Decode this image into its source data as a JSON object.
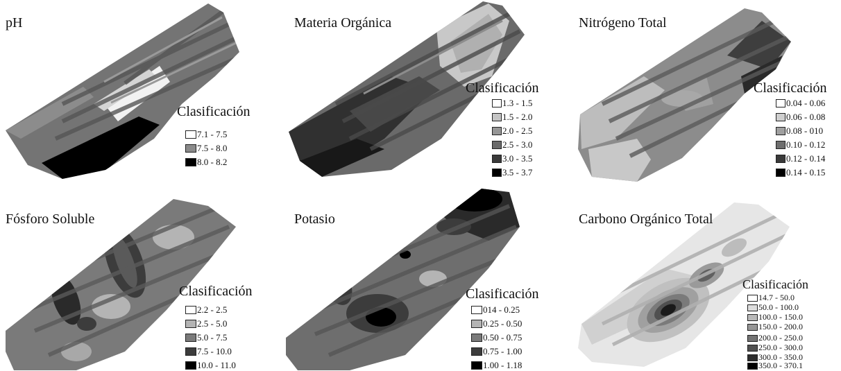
{
  "panels": [
    {
      "title": "pH",
      "legend_title": "Clasificación",
      "classes": [
        {
          "label": "7.1 - 7.5",
          "color": "#ffffff"
        },
        {
          "label": "7.5 - 8.0",
          "color": "#8a8a8a"
        },
        {
          "label": "8.0 - 8.2",
          "color": "#000000"
        }
      ]
    },
    {
      "title": "Materia Orgánica",
      "legend_title": "Clasificación",
      "classes": [
        {
          "label": "1.3 - 1.5",
          "color": "#ffffff"
        },
        {
          "label": "1.5 - 2.0",
          "color": "#c4c4c4"
        },
        {
          "label": "2.0 - 2.5",
          "color": "#969696"
        },
        {
          "label": "2.5 - 3.0",
          "color": "#6a6a6a"
        },
        {
          "label": "3.0 - 3.5",
          "color": "#3a3a3a"
        },
        {
          "label": "3.5 - 3.7",
          "color": "#000000"
        }
      ]
    },
    {
      "title": "Nitrógeno Total",
      "legend_title": "Clasificación",
      "classes": [
        {
          "label": "0.04 - 0.06",
          "color": "#ffffff"
        },
        {
          "label": "0.06 - 0.08",
          "color": "#cfcfcf"
        },
        {
          "label": "0.08 - 010",
          "color": "#a0a0a0"
        },
        {
          "label": "0.10 - 0.12",
          "color": "#6e6e6e"
        },
        {
          "label": "0.12 - 0.14",
          "color": "#3a3a3a"
        },
        {
          "label": "0.14 - 0.15",
          "color": "#000000"
        }
      ]
    },
    {
      "title": "Fósforo Soluble",
      "legend_title": "Clasificación",
      "classes": [
        {
          "label": "2.2 - 2.5",
          "color": "#ffffff"
        },
        {
          "label": "2.5 - 5.0",
          "color": "#b4b4b4"
        },
        {
          "label": "5.0 - 7.5",
          "color": "#7a7a7a"
        },
        {
          "label": "7.5 - 10.0",
          "color": "#3c3c3c"
        },
        {
          "label": "10.0 - 11.0",
          "color": "#000000"
        }
      ]
    },
    {
      "title": "Potasio",
      "legend_title": "Clasificación",
      "classes": [
        {
          "label": "014 - 0.25",
          "color": "#ffffff"
        },
        {
          "label": "0.25 - 0.50",
          "color": "#b4b4b4"
        },
        {
          "label": "0.50 - 0.75",
          "color": "#7a7a7a"
        },
        {
          "label": "0.75 - 1.00",
          "color": "#3c3c3c"
        },
        {
          "label": "1.00 - 1.18",
          "color": "#000000"
        }
      ]
    },
    {
      "title": "Carbono Orgánico Total",
      "legend_title": "Clasificación",
      "classes": [
        {
          "label": "14.7 - 50.0",
          "color": "#ffffff"
        },
        {
          "label": "50.0 - 100.0",
          "color": "#dcdcdc"
        },
        {
          "label": "100.0 - 150.0",
          "color": "#b9b9b9"
        },
        {
          "label": "150.0 - 200.0",
          "color": "#969696"
        },
        {
          "label": "200.0 - 250.0",
          "color": "#737373"
        },
        {
          "label": "250.0 - 300.0",
          "color": "#505050"
        },
        {
          "label": "300.0 - 350.0",
          "color": "#2d2d2d"
        },
        {
          "label": "350.0 - 370.1",
          "color": "#000000"
        }
      ]
    }
  ]
}
